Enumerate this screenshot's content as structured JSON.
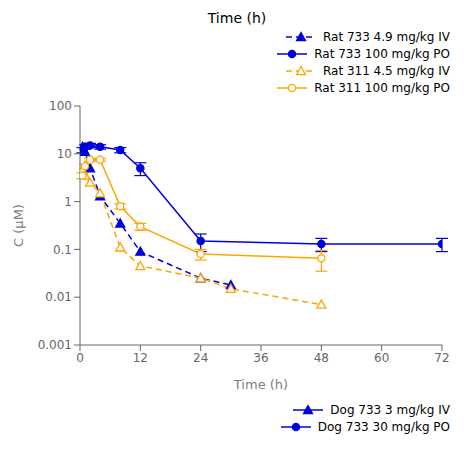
{
  "chart_data": {
    "type": "line",
    "title": "Time (h)",
    "x_label": "Time (h)",
    "y_label": "C (μM)",
    "log": "y",
    "xlim": [
      0,
      72
    ],
    "ylim": [
      0.001,
      100
    ],
    "xticks": [
      0,
      12,
      24,
      36,
      48,
      60,
      72
    ],
    "yticks": [
      0.001,
      0.01,
      0.1,
      1,
      10,
      100
    ],
    "legend": "top",
    "series": [
      {
        "name": "Rat 733 4.9 mg/kg IV",
        "color": "#0000dd",
        "line_style": "dashed",
        "marker": "triangle",
        "x": [
          0.5,
          1,
          2,
          4,
          8,
          12,
          24,
          30,
          48
        ],
        "values": [
          14,
          11,
          5,
          1.3,
          0.35,
          0.09,
          0.025,
          0.018,
          null
        ]
      },
      {
        "name": "Rat 733 100 mg/kg PO",
        "color": "#0000dd",
        "line_style": "solid",
        "marker": "circle",
        "x": [
          0.5,
          1,
          2,
          4,
          8,
          12,
          24,
          48,
          72
        ],
        "values": [
          12,
          14,
          15,
          14,
          12,
          5.0,
          0.15,
          0.13,
          0.13
        ],
        "yerr_low": [
          1.5,
          1.5,
          1.5,
          1.5,
          1.5,
          1.5,
          0.06,
          0.04,
          0.04
        ],
        "yerr_high": [
          1.5,
          1.5,
          1.5,
          1.5,
          1.5,
          1.5,
          0.06,
          0.04,
          0.04
        ]
      },
      {
        "name": "Rat 311 4.5 mg/kg IV",
        "color": "#FFA500",
        "line_style": "dashed",
        "marker": "triangle-open",
        "x": [
          0.5,
          1,
          2,
          4,
          8,
          12,
          24,
          30,
          48
        ],
        "values": [
          4.5,
          3.5,
          2.5,
          1.5,
          0.11,
          0.045,
          0.025,
          0.015,
          0.007
        ]
      },
      {
        "name": "Rat 311 100 mg/kg PO",
        "color": "#FFA500",
        "line_style": "solid",
        "marker": "circle-open",
        "x": [
          0.5,
          1,
          2,
          4,
          8,
          12,
          24,
          48
        ],
        "values": [
          3.5,
          5.5,
          7.5,
          7.5,
          0.8,
          0.3,
          0.08,
          0.065
        ],
        "yerr_low": [
          0.5,
          0.5,
          0.5,
          0.5,
          0.1,
          0.05,
          0.02,
          0.03
        ],
        "yerr_high": [
          0.5,
          0.5,
          0.5,
          0.5,
          0.1,
          0.05,
          0.02,
          0.03
        ]
      },
      {
        "name": "Dog 733 3 mg/kg IV",
        "color": "#0000dd",
        "line_style": "solid",
        "marker": "triangle",
        "x": [],
        "values": []
      },
      {
        "name": "Dog 733 30 mg/kg PO",
        "color": "#0000dd",
        "line_style": "solid",
        "marker": "circle",
        "x": [],
        "values": []
      }
    ]
  }
}
